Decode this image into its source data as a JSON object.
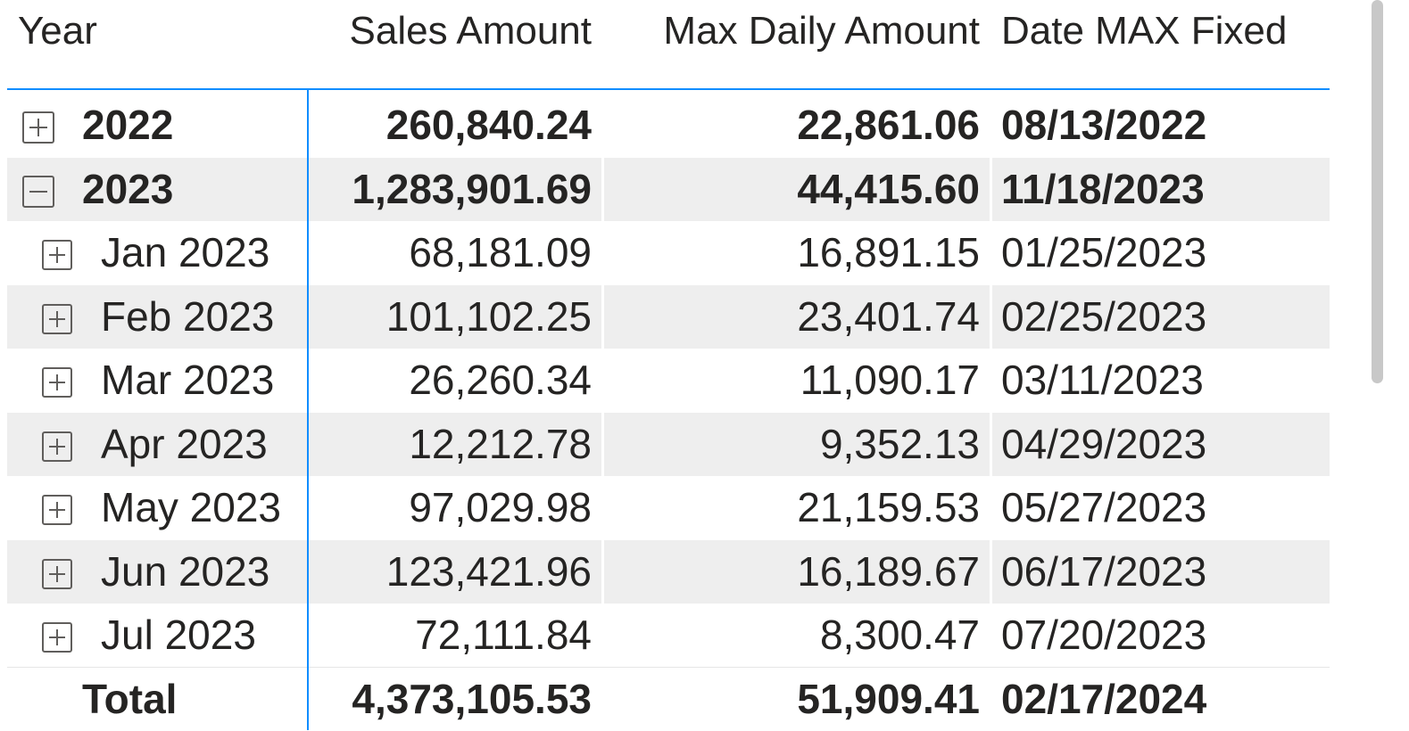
{
  "table": {
    "columns": [
      "Year",
      "Sales Amount",
      "Max Daily Amount",
      "Date MAX Fixed"
    ],
    "rows": [
      {
        "label": "2022",
        "level": 0,
        "expanded": false,
        "cells": [
          "260,840.24",
          "22,861.06",
          "08/13/2022"
        ]
      },
      {
        "label": "2023",
        "level": 0,
        "expanded": true,
        "cells": [
          "1,283,901.69",
          "44,415.60",
          "11/18/2023"
        ]
      },
      {
        "label": "Jan 2023",
        "level": 1,
        "expanded": false,
        "cells": [
          "68,181.09",
          "16,891.15",
          "01/25/2023"
        ]
      },
      {
        "label": "Feb 2023",
        "level": 1,
        "expanded": false,
        "cells": [
          "101,102.25",
          "23,401.74",
          "02/25/2023"
        ]
      },
      {
        "label": "Mar 2023",
        "level": 1,
        "expanded": false,
        "cells": [
          "26,260.34",
          "11,090.17",
          "03/11/2023"
        ]
      },
      {
        "label": "Apr 2023",
        "level": 1,
        "expanded": false,
        "cells": [
          "12,212.78",
          "9,352.13",
          "04/29/2023"
        ]
      },
      {
        "label": "May 2023",
        "level": 1,
        "expanded": false,
        "cells": [
          "97,029.98",
          "21,159.53",
          "05/27/2023"
        ]
      },
      {
        "label": "Jun 2023",
        "level": 1,
        "expanded": false,
        "cells": [
          "123,421.96",
          "16,189.67",
          "06/17/2023"
        ]
      },
      {
        "label": "Jul 2023",
        "level": 1,
        "expanded": false,
        "cells": [
          "72,111.84",
          "8,300.47",
          "07/20/2023"
        ]
      }
    ],
    "total": {
      "label": "Total",
      "cells": [
        "4,373,105.53",
        "51,909.41",
        "02/17/2024"
      ]
    }
  }
}
